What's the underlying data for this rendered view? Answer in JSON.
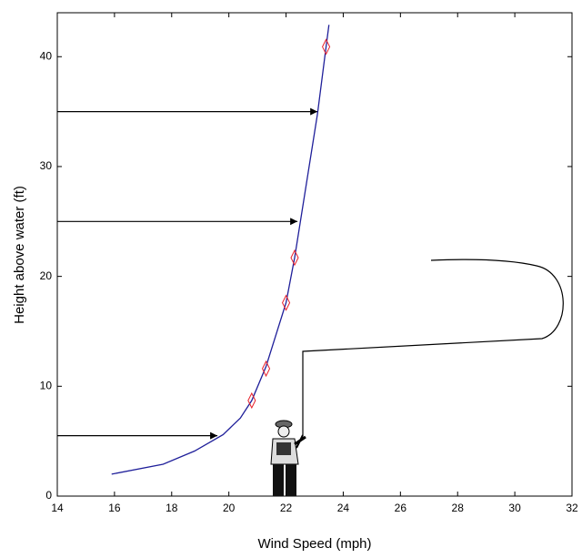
{
  "chart_data": {
    "type": "line",
    "x_label": "Wind Speed (mph)",
    "y_label": "Height above water (ft)",
    "xlim": [
      14,
      32
    ],
    "xticks": [
      14,
      16,
      18,
      20,
      22,
      24,
      26,
      28,
      30,
      32
    ],
    "ylim": [
      0,
      44
    ],
    "yticks": [
      0,
      10,
      20,
      30,
      40
    ],
    "series": [
      {
        "type": "line",
        "color": "#1f1f9a",
        "x": [
          15.9,
          17.7,
          18.8,
          19.8,
          20.4,
          20.8,
          21.3,
          22.0,
          22.3,
          23.1,
          23.4,
          23.5
        ],
        "values": [
          2.0,
          2.9,
          4.1,
          5.6,
          7.1,
          8.7,
          11.8,
          17.6,
          21.7,
          34.8,
          40.9,
          42.9
        ]
      },
      {
        "type": "scatter",
        "color": "#e8202a",
        "x": [
          20.8,
          21.3,
          22.0,
          22.3,
          23.4
        ],
        "values": [
          8.7,
          11.6,
          17.6,
          21.7,
          40.9
        ]
      }
    ],
    "arrows": [
      {
        "y": 35,
        "x_end": 23.1
      },
      {
        "y": 25,
        "x_end": 22.4
      },
      {
        "y": 5.5,
        "x_end": 19.6
      }
    ]
  }
}
